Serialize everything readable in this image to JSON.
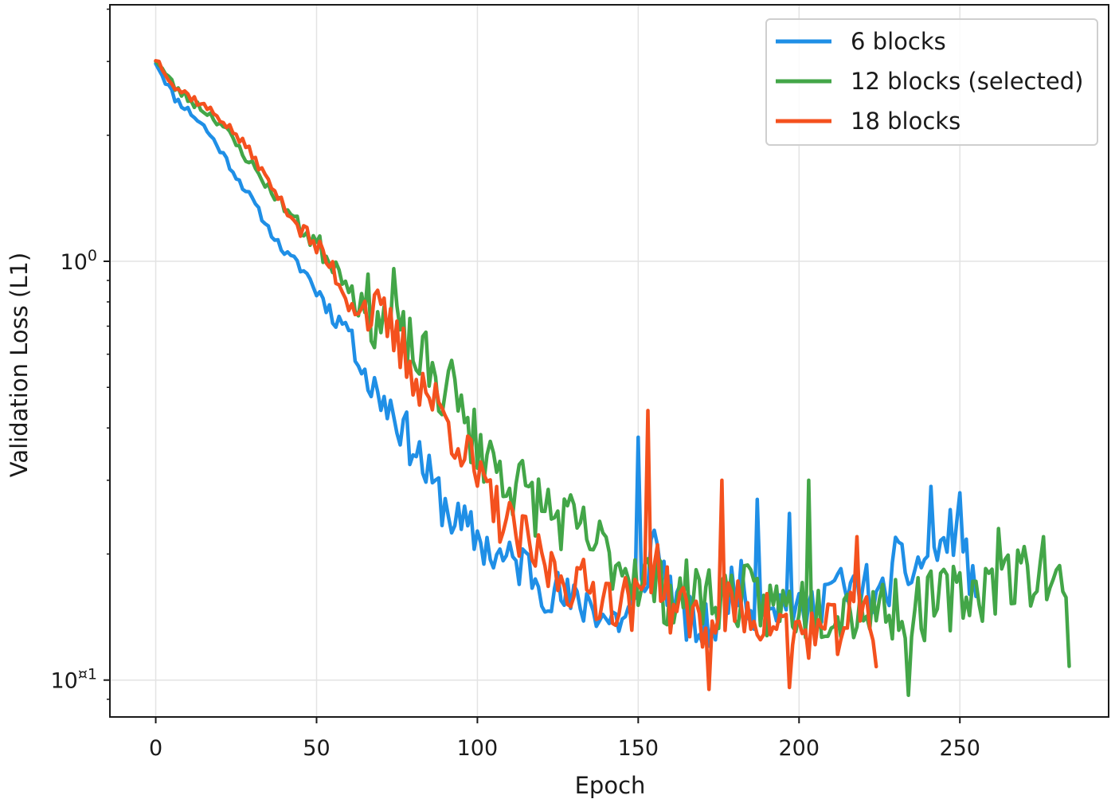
{
  "chart_data": {
    "type": "line",
    "title": "",
    "xlabel": "Epoch",
    "ylabel": "Validation Loss (L1)",
    "xlim": [
      -14,
      296
    ],
    "ylim": [
      0.082,
      4.08
    ],
    "y_scale": "log",
    "x_ticks": [
      0,
      50,
      100,
      150,
      200,
      250
    ],
    "x_tick_labels": [
      "0",
      "50",
      "100",
      "150",
      "200",
      "250"
    ],
    "y_ticks": [
      1,
      0.1
    ],
    "y_tick_labels": [
      "10^0",
      "10^¤1"
    ],
    "grid": true,
    "legend_position": "top-right",
    "series": [
      {
        "name": "6 blocks",
        "color": "#1f8fe6",
        "x": [
          0,
          3,
          6,
          10,
          15,
          20,
          25,
          30,
          35,
          40,
          45,
          48,
          50,
          52,
          55,
          60,
          62,
          65,
          67,
          70,
          73,
          75,
          78,
          80,
          85,
          90,
          95,
          100,
          105,
          110,
          115,
          120,
          125,
          130,
          135,
          140,
          145,
          150,
          155,
          160,
          165,
          170,
          175,
          180,
          185,
          190,
          195,
          200,
          205,
          210,
          215,
          220,
          225,
          230,
          235,
          240,
          245,
          250,
          255
        ],
        "y": [
          3.0,
          2.7,
          2.45,
          2.3,
          2.1,
          1.85,
          1.6,
          1.4,
          1.2,
          1.05,
          0.98,
          0.9,
          0.85,
          0.82,
          0.74,
          0.7,
          0.6,
          0.55,
          0.5,
          0.48,
          0.45,
          0.43,
          0.38,
          0.37,
          0.3,
          0.26,
          0.23,
          0.22,
          0.2,
          0.19,
          0.19,
          0.17,
          0.16,
          0.15,
          0.155,
          0.14,
          0.14,
          0.15,
          0.22,
          0.16,
          0.14,
          0.13,
          0.14,
          0.18,
          0.15,
          0.16,
          0.15,
          0.14,
          0.15,
          0.17,
          0.16,
          0.17,
          0.15,
          0.19,
          0.18,
          0.2,
          0.21,
          0.24,
          0.15
        ],
        "x_end": 255,
        "noise": 0.09,
        "seed": 11,
        "spikes": [
          [
            150,
            0.38
          ],
          [
            187,
            0.27
          ],
          [
            197,
            0.25
          ],
          [
            241,
            0.29
          ],
          [
            250,
            0.28
          ]
        ]
      },
      {
        "name": "12 blocks (selected)",
        "color": "#43a648",
        "x": [
          0,
          3,
          6,
          10,
          15,
          20,
          25,
          30,
          35,
          40,
          45,
          48,
          50,
          55,
          60,
          62,
          65,
          70,
          75,
          80,
          85,
          90,
          95,
          100,
          110,
          120,
          130,
          140,
          150,
          160,
          170,
          180,
          190,
          200,
          210,
          220,
          230,
          240,
          250,
          260,
          270,
          280,
          284
        ],
        "y": [
          3.05,
          2.8,
          2.6,
          2.45,
          2.3,
          2.15,
          1.9,
          1.7,
          1.5,
          1.35,
          1.22,
          1.15,
          1.1,
          1.0,
          0.9,
          0.8,
          0.78,
          0.73,
          0.66,
          0.6,
          0.55,
          0.48,
          0.42,
          0.37,
          0.3,
          0.26,
          0.23,
          0.2,
          0.18,
          0.16,
          0.16,
          0.16,
          0.15,
          0.15,
          0.15,
          0.15,
          0.15,
          0.15,
          0.16,
          0.17,
          0.18,
          0.18,
          0.13
        ],
        "x_end": 284,
        "noise": 0.12,
        "seed": 23,
        "spikes": [
          [
            74,
            0.96
          ],
          [
            92,
            0.58
          ],
          [
            203,
            0.3
          ],
          [
            234,
            0.092
          ],
          [
            262,
            0.23
          ],
          [
            276,
            0.22
          ]
        ]
      },
      {
        "name": "18 blocks",
        "color": "#f4511e",
        "x": [
          0,
          3,
          6,
          10,
          15,
          20,
          25,
          30,
          35,
          40,
          45,
          50,
          55,
          60,
          62,
          65,
          70,
          75,
          80,
          85,
          90,
          95,
          100,
          105,
          110,
          115,
          120,
          130,
          140,
          150,
          155,
          160,
          170,
          180,
          190,
          200,
          210,
          215,
          220,
          224
        ],
        "y": [
          3.05,
          2.85,
          2.6,
          2.5,
          2.35,
          2.2,
          2.0,
          1.8,
          1.55,
          1.35,
          1.2,
          1.08,
          0.96,
          0.8,
          0.78,
          0.77,
          0.73,
          0.64,
          0.55,
          0.48,
          0.42,
          0.37,
          0.3,
          0.26,
          0.23,
          0.21,
          0.19,
          0.17,
          0.16,
          0.15,
          0.2,
          0.15,
          0.14,
          0.15,
          0.14,
          0.13,
          0.13,
          0.14,
          0.15,
          0.12
        ],
        "x_end": 224,
        "noise": 0.1,
        "seed": 37,
        "spikes": [
          [
            153,
            0.44
          ],
          [
            172,
            0.095
          ],
          [
            176,
            0.3
          ],
          [
            197,
            0.096
          ],
          [
            218,
            0.22
          ]
        ]
      }
    ]
  }
}
